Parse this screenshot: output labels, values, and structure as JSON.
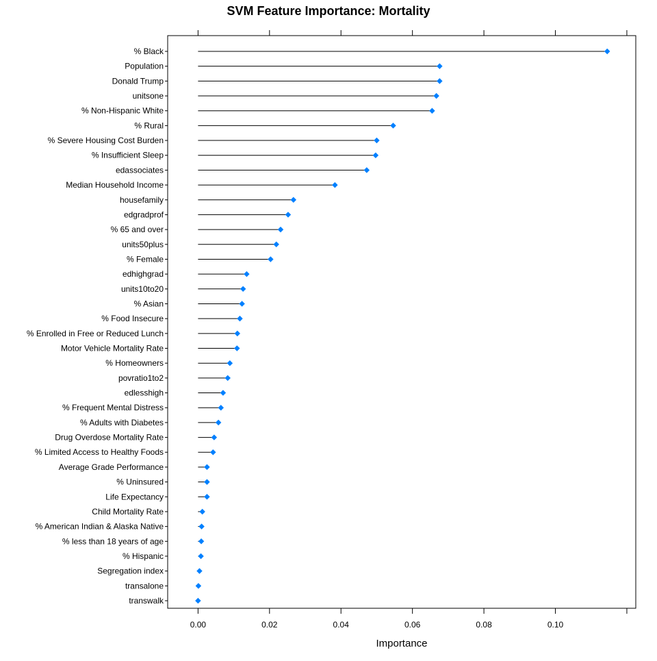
{
  "chart_data": {
    "type": "scatter",
    "style": "dot-plot with leader lines",
    "title": "SVM Feature Importance: Mortality",
    "xlabel": "Importance",
    "ylabel": "",
    "xlim": [
      -0.0085,
      0.1225
    ],
    "x_ticks": [
      0.0,
      0.02,
      0.04,
      0.06,
      0.08,
      0.1
    ],
    "x_tick_labels": [
      "0.00",
      "0.02",
      "0.04",
      "0.06",
      "0.08",
      "0.10"
    ],
    "grid": false,
    "legend": "none",
    "point_color": "#0080ff",
    "line_color": "#000000",
    "categories": [
      "% Black",
      "Population",
      "Donald Trump",
      "unitsone",
      "% Non-Hispanic White",
      "% Rural",
      "% Severe Housing Cost Burden",
      "% Insufficient Sleep",
      "edassociates",
      "Median Household Income",
      "housefamily",
      "edgradprof",
      "% 65 and over",
      "units50plus",
      "% Female",
      "edhighgrad",
      "units10to20",
      "% Asian",
      "% Food Insecure",
      "% Enrolled in Free or Reduced Lunch",
      "Motor Vehicle Mortality Rate",
      "% Homeowners",
      "povratio1to2",
      "edlesshigh",
      "% Frequent Mental Distress",
      "% Adults with Diabetes",
      "Drug Overdose Mortality Rate",
      "% Limited Access to Healthy Foods",
      "Average Grade Performance",
      "% Uninsured",
      "Life Expectancy",
      "Child Mortality Rate",
      "% American Indian & Alaska Native",
      "% less than 18 years of age",
      "% Hispanic",
      "Segregation index",
      "transalone",
      "transwalk"
    ],
    "values": [
      0.1145,
      0.0676,
      0.0676,
      0.0667,
      0.0655,
      0.0546,
      0.05,
      0.0497,
      0.0472,
      0.0383,
      0.0267,
      0.0252,
      0.0231,
      0.0219,
      0.0203,
      0.0136,
      0.0126,
      0.0123,
      0.0117,
      0.011,
      0.0109,
      0.0089,
      0.0083,
      0.007,
      0.0064,
      0.0057,
      0.0045,
      0.0042,
      0.0025,
      0.0025,
      0.0025,
      0.0012,
      0.001,
      0.0009,
      0.0008,
      0.0004,
      0.0001,
      0.0
    ]
  }
}
